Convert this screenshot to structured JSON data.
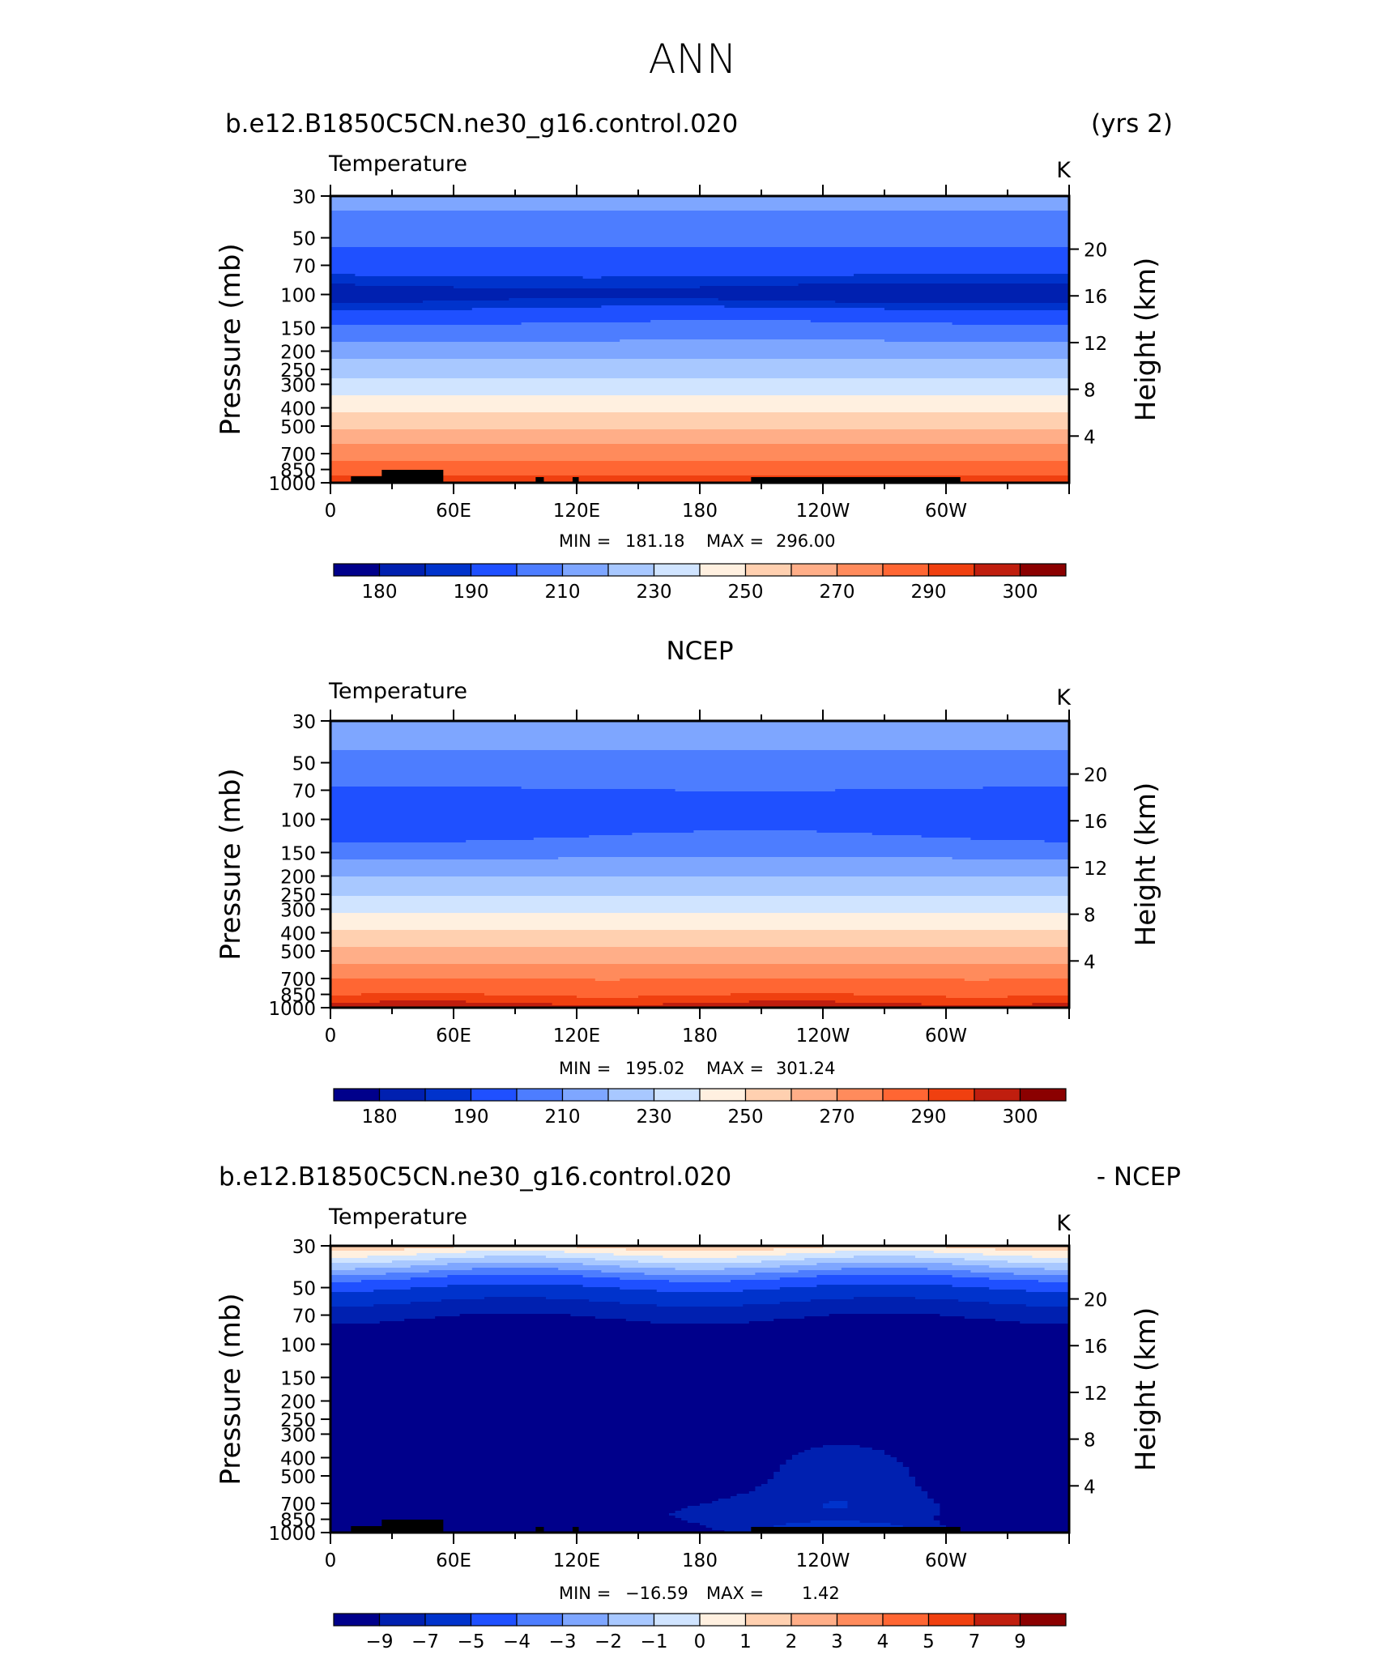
{
  "title": "ANN",
  "chart_data": [
    {
      "type": "heatmap",
      "case_label": "b.e12.B1850C5CN.ne30_g16.control.020",
      "case_suffix": "(yrs 2)",
      "variable": "Temperature",
      "units": "K",
      "ylabel_left": "Pressure (mb)",
      "ylabel_right": "Height (km)",
      "x_ticks": [
        "0",
        "60E",
        "120E",
        "180",
        "120W",
        "60W"
      ],
      "x_tick_lon": [
        0,
        60,
        120,
        180,
        240,
        300
      ],
      "x_range": [
        0,
        360
      ],
      "p_ticks": [
        "30",
        "50",
        "70",
        "100",
        "150",
        "200",
        "250",
        "300",
        "400",
        "500",
        "700",
        "850",
        "1000"
      ],
      "p_tick_values": [
        30,
        50,
        70,
        100,
        150,
        200,
        250,
        300,
        400,
        500,
        700,
        850,
        1000
      ],
      "z_ticks": [
        "20",
        "16",
        "12",
        "8",
        "4"
      ],
      "z_tick_values": [
        20,
        16,
        12,
        8,
        4
      ],
      "stats": {
        "min_label": "MIN =",
        "min": "181.18",
        "max_label": "MAX =",
        "max": "296.00"
      },
      "colorbar_labels": [
        "180",
        "190",
        "210",
        "230",
        "250",
        "270",
        "290",
        "300"
      ],
      "band_levels_K": [
        300,
        282,
        272,
        262,
        256,
        250,
        244,
        236,
        228,
        220,
        214,
        208,
        198,
        196,
        200,
        208,
        216
      ],
      "band_pressure": [
        1000,
        950,
        900,
        800,
        700,
        600,
        500,
        400,
        330,
        270,
        220,
        170,
        120,
        90,
        65,
        45,
        30
      ]
    },
    {
      "type": "heatmap",
      "case_label": "NCEP",
      "variable": "Temperature",
      "units": "K",
      "ylabel_left": "Pressure (mb)",
      "ylabel_right": "Height (km)",
      "x_ticks": [
        "0",
        "60E",
        "120E",
        "180",
        "120W",
        "60W"
      ],
      "x_tick_lon": [
        0,
        60,
        120,
        180,
        240,
        300
      ],
      "x_range": [
        0,
        360
      ],
      "p_ticks": [
        "30",
        "50",
        "70",
        "100",
        "150",
        "200",
        "250",
        "300",
        "400",
        "500",
        "700",
        "850",
        "1000"
      ],
      "p_tick_values": [
        30,
        50,
        70,
        100,
        150,
        200,
        250,
        300,
        400,
        500,
        700,
        850,
        1000
      ],
      "z_ticks": [
        "20",
        "16",
        "12",
        "8",
        "4"
      ],
      "z_tick_values": [
        20,
        16,
        12,
        8,
        4
      ],
      "stats": {
        "min_label": "MIN =",
        "min": "195.02",
        "max_label": "MAX =",
        "max": "301.24"
      },
      "colorbar_labels": [
        "180",
        "190",
        "210",
        "230",
        "250",
        "270",
        "290",
        "300"
      ]
    },
    {
      "type": "heatmap",
      "case_label": "b.e12.B1850C5CN.ne30_g16.control.020",
      "case_suffix": "- NCEP",
      "variable": "Temperature",
      "units": "K",
      "ylabel_left": "Pressure (mb)",
      "ylabel_right": "Height (km)",
      "x_ticks": [
        "0",
        "60E",
        "120E",
        "180",
        "120W",
        "60W"
      ],
      "x_tick_lon": [
        0,
        60,
        120,
        180,
        240,
        300
      ],
      "x_range": [
        0,
        360
      ],
      "p_ticks": [
        "30",
        "50",
        "70",
        "100",
        "150",
        "200",
        "250",
        "300",
        "400",
        "500",
        "700",
        "850",
        "1000"
      ],
      "p_tick_values": [
        30,
        50,
        70,
        100,
        150,
        200,
        250,
        300,
        400,
        500,
        700,
        850,
        1000
      ],
      "z_ticks": [
        "20",
        "16",
        "12",
        "8",
        "4"
      ],
      "z_tick_values": [
        20,
        16,
        12,
        8,
        4
      ],
      "stats": {
        "min_label": "MIN =",
        "min": "−16.59",
        "max_label": "MAX =",
        "max": "1.42"
      },
      "colorbar_labels": [
        "−9",
        "−7",
        "−5",
        "−4",
        "−3",
        "−2",
        "−1",
        "0",
        "1",
        "2",
        "3",
        "4",
        "5",
        "7",
        "9"
      ]
    }
  ],
  "colors": {
    "abs_palette": [
      "#00008b",
      "#0020b0",
      "#0033cc",
      "#1f50ff",
      "#4d7dff",
      "#7ea6ff",
      "#a8c8ff",
      "#d0e4ff",
      "#fff0e0",
      "#ffd0b0",
      "#ffae88",
      "#ff8b5c",
      "#ff6633",
      "#f04010",
      "#c01e0e",
      "#8b0000"
    ],
    "diff_palette": [
      "#00008b",
      "#0020b0",
      "#0033cc",
      "#1f50ff",
      "#4d7dff",
      "#7ea6ff",
      "#a8c8ff",
      "#d0e4ff",
      "#fff0e0",
      "#ffd0b0",
      "#ffae88",
      "#ff8b5c",
      "#ff6633",
      "#f04010",
      "#c01e0e",
      "#8b0000"
    ],
    "topography": "#000000"
  }
}
